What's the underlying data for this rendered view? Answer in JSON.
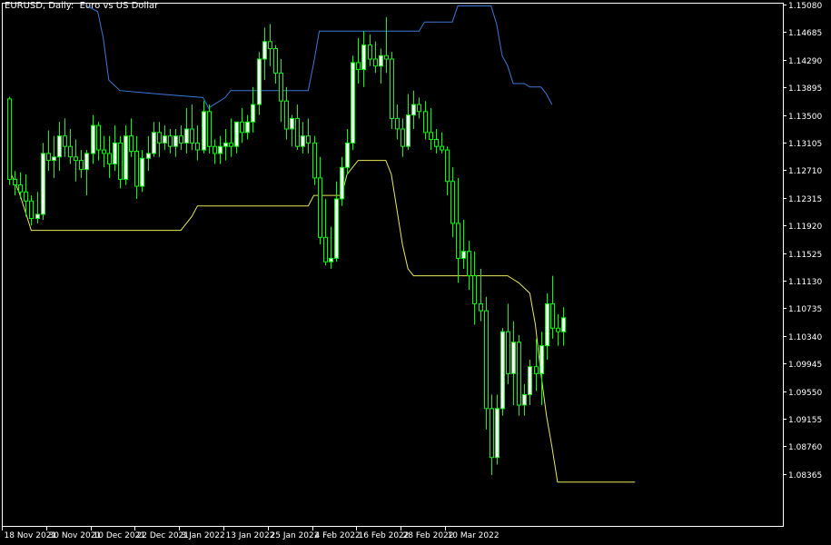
{
  "chart_data": {
    "type": "candlestick",
    "title": "EURUSD, Daily:  Euro vs US Dollar",
    "ylim": [
      1.0796,
      1.1512
    ],
    "y_ticks": [
      "1.15080",
      "1.14685",
      "1.14290",
      "1.13895",
      "1.13500",
      "1.13105",
      "1.12710",
      "1.12315",
      "1.11920",
      "1.11525",
      "1.11130",
      "1.10735",
      "1.10340",
      "1.09945",
      "1.09550",
      "1.09155",
      "1.08760",
      "1.08365"
    ],
    "x_ticks": [
      {
        "index": 0,
        "label": "18 Nov 2021"
      },
      {
        "index": 8,
        "label": "30 Nov 2021"
      },
      {
        "index": 16,
        "label": "10 Dec 2021"
      },
      {
        "index": 24,
        "label": "22 Dec 2021"
      },
      {
        "index": 32,
        "label": "3 Jan 2022"
      },
      {
        "index": 40,
        "label": "13 Jan 2022"
      },
      {
        "index": 48,
        "label": "25 Jan 2022"
      },
      {
        "index": 56,
        "label": "4 Feb 2022"
      },
      {
        "index": 64,
        "label": "16 Feb 2022"
      },
      {
        "index": 72,
        "label": "28 Feb 2022"
      },
      {
        "index": 80,
        "label": "10 Mar 2022"
      }
    ],
    "candles": [
      [
        1.1373,
        1.1376,
        1.125,
        1.1258
      ],
      [
        1.1258,
        1.127,
        1.1235,
        1.125
      ],
      [
        1.125,
        1.1268,
        1.123,
        1.124
      ],
      [
        1.124,
        1.1265,
        1.1205,
        1.1227
      ],
      [
        1.1227,
        1.1235,
        1.1192,
        1.1202
      ],
      [
        1.1202,
        1.124,
        1.1195,
        1.1208
      ],
      [
        1.1208,
        1.131,
        1.12,
        1.1295
      ],
      [
        1.1295,
        1.1328,
        1.127,
        1.1285
      ],
      [
        1.1285,
        1.132,
        1.126,
        1.129
      ],
      [
        1.129,
        1.134,
        1.127,
        1.132
      ],
      [
        1.132,
        1.1345,
        1.129,
        1.1305
      ],
      [
        1.1305,
        1.133,
        1.128,
        1.129
      ],
      [
        1.129,
        1.1315,
        1.1255,
        1.1285
      ],
      [
        1.1285,
        1.13,
        1.126,
        1.1272
      ],
      [
        1.1272,
        1.13,
        1.1235,
        1.1295
      ],
      [
        1.1295,
        1.135,
        1.128,
        1.1335
      ],
      [
        1.1335,
        1.134,
        1.1285,
        1.13
      ],
      [
        1.13,
        1.132,
        1.1275,
        1.1295
      ],
      [
        1.1295,
        1.132,
        1.126,
        1.128
      ],
      [
        1.128,
        1.1335,
        1.127,
        1.131
      ],
      [
        1.131,
        1.132,
        1.1245,
        1.1258
      ],
      [
        1.1258,
        1.1335,
        1.125,
        1.132
      ],
      [
        1.132,
        1.1345,
        1.129,
        1.1298
      ],
      [
        1.1298,
        1.132,
        1.123,
        1.1248
      ],
      [
        1.1248,
        1.13,
        1.124,
        1.1288
      ],
      [
        1.1288,
        1.132,
        1.127,
        1.1295
      ],
      [
        1.1295,
        1.134,
        1.129,
        1.1325
      ],
      [
        1.1325,
        1.134,
        1.129,
        1.131
      ],
      [
        1.131,
        1.1335,
        1.13,
        1.132
      ],
      [
        1.132,
        1.133,
        1.1295,
        1.1305
      ],
      [
        1.1305,
        1.133,
        1.129,
        1.132
      ],
      [
        1.132,
        1.1335,
        1.13,
        1.131
      ],
      [
        1.131,
        1.136,
        1.1295,
        1.133
      ],
      [
        1.133,
        1.1365,
        1.13,
        1.131
      ],
      [
        1.131,
        1.1335,
        1.1285,
        1.13
      ],
      [
        1.13,
        1.137,
        1.1295,
        1.1355
      ],
      [
        1.1355,
        1.1365,
        1.1295,
        1.1305
      ],
      [
        1.1305,
        1.1315,
        1.128,
        1.1295
      ],
      [
        1.1295,
        1.132,
        1.128,
        1.1305
      ],
      [
        1.1305,
        1.133,
        1.1285,
        1.131
      ],
      [
        1.131,
        1.1345,
        1.129,
        1.1305
      ],
      [
        1.1305,
        1.134,
        1.1295,
        1.134
      ],
      [
        1.134,
        1.136,
        1.131,
        1.1325
      ],
      [
        1.1325,
        1.135,
        1.1315,
        1.134
      ],
      [
        1.134,
        1.139,
        1.1325,
        1.1365
      ],
      [
        1.1365,
        1.144,
        1.135,
        1.143
      ],
      [
        1.143,
        1.1475,
        1.14,
        1.1455
      ],
      [
        1.1455,
        1.148,
        1.142,
        1.1445
      ],
      [
        1.1445,
        1.145,
        1.1395,
        1.141
      ],
      [
        1.141,
        1.143,
        1.134,
        1.137
      ],
      [
        1.137,
        1.139,
        1.1315,
        1.133
      ],
      [
        1.133,
        1.135,
        1.1305,
        1.1345
      ],
      [
        1.1345,
        1.1365,
        1.13,
        1.1305
      ],
      [
        1.1305,
        1.134,
        1.1295,
        1.132
      ],
      [
        1.132,
        1.1345,
        1.1295,
        1.131
      ],
      [
        1.131,
        1.132,
        1.125,
        1.126
      ],
      [
        1.126,
        1.129,
        1.1165,
        1.1175
      ],
      [
        1.1175,
        1.123,
        1.1135,
        1.114
      ],
      [
        1.114,
        1.119,
        1.113,
        1.1145
      ],
      [
        1.1145,
        1.1255,
        1.114,
        1.123
      ],
      [
        1.123,
        1.129,
        1.122,
        1.1275
      ],
      [
        1.1275,
        1.133,
        1.1265,
        1.131
      ],
      [
        1.131,
        1.1435,
        1.13,
        1.1425
      ],
      [
        1.1425,
        1.146,
        1.1395,
        1.1415
      ],
      [
        1.1415,
        1.147,
        1.139,
        1.145
      ],
      [
        1.145,
        1.1465,
        1.142,
        1.143
      ],
      [
        1.143,
        1.1455,
        1.141,
        1.142
      ],
      [
        1.142,
        1.1445,
        1.1395,
        1.1435
      ],
      [
        1.1435,
        1.149,
        1.141,
        1.143
      ],
      [
        1.143,
        1.144,
        1.133,
        1.1345
      ],
      [
        1.1345,
        1.1365,
        1.1315,
        1.133
      ],
      [
        1.133,
        1.1345,
        1.129,
        1.1305
      ],
      [
        1.1305,
        1.138,
        1.13,
        1.135
      ],
      [
        1.135,
        1.1385,
        1.133,
        1.1365
      ],
      [
        1.1365,
        1.1375,
        1.1345,
        1.1355
      ],
      [
        1.1355,
        1.137,
        1.1315,
        1.1325
      ],
      [
        1.1325,
        1.136,
        1.13,
        1.1315
      ],
      [
        1.1315,
        1.133,
        1.1295,
        1.1305
      ],
      [
        1.1305,
        1.1325,
        1.1295,
        1.13
      ],
      [
        1.13,
        1.1305,
        1.1235,
        1.1255
      ],
      [
        1.1255,
        1.1275,
        1.1175,
        1.1195
      ],
      [
        1.1195,
        1.126,
        1.111,
        1.1145
      ],
      [
        1.1145,
        1.12,
        1.113,
        1.1155
      ],
      [
        1.1155,
        1.117,
        1.11,
        1.112
      ],
      [
        1.112,
        1.1155,
        1.105,
        1.108
      ],
      [
        1.108,
        1.113,
        1.1055,
        1.107
      ],
      [
        1.107,
        1.109,
        1.09,
        1.093
      ],
      [
        1.093,
        1.095,
        1.0835,
        1.086
      ],
      [
        1.086,
        1.095,
        1.085,
        1.093
      ],
      [
        1.093,
        1.1045,
        1.092,
        1.104
      ],
      [
        1.104,
        1.108,
        1.0965,
        1.098
      ],
      [
        1.098,
        1.1055,
        1.0935,
        1.1025
      ],
      [
        1.1025,
        1.1035,
        1.092,
        1.0935
      ],
      [
        1.0935,
        1.0965,
        1.092,
        1.095
      ],
      [
        1.095,
        1.1,
        1.0935,
        1.099
      ],
      [
        1.099,
        1.103,
        1.0955,
        1.098
      ],
      [
        1.098,
        1.104,
        1.0935,
        1.102
      ],
      [
        1.102,
        1.1095,
        1.1,
        1.108
      ],
      [
        1.108,
        1.112,
        1.103,
        1.1045
      ],
      [
        1.1045,
        1.1065,
        1.102,
        1.104
      ],
      [
        1.104,
        1.1075,
        1.102,
        1.106
      ]
    ],
    "upper_band": [
      [
        14,
        1.1506
      ],
      [
        16,
        1.1498
      ],
      [
        17,
        1.146
      ],
      [
        18,
        1.14
      ],
      [
        20,
        1.1385
      ],
      [
        27,
        1.138
      ],
      [
        35,
        1.1375
      ],
      [
        36,
        1.136
      ],
      [
        37,
        1.1365
      ],
      [
        39,
        1.1375
      ],
      [
        40,
        1.1385
      ],
      [
        54,
        1.1385
      ],
      [
        55,
        1.1425
      ],
      [
        56,
        1.147
      ],
      [
        74,
        1.147
      ],
      [
        75,
        1.1483
      ],
      [
        80,
        1.1483
      ],
      [
        81,
        1.1506
      ],
      [
        87,
        1.1506
      ],
      [
        88,
        1.148
      ],
      [
        89,
        1.1435
      ],
      [
        90,
        1.142
      ],
      [
        91,
        1.1395
      ],
      [
        93,
        1.1395
      ],
      [
        94,
        1.139
      ],
      [
        96,
        1.139
      ],
      [
        97,
        1.138
      ],
      [
        98,
        1.1365
      ]
    ],
    "lower_band": [
      [
        0,
        1.1271
      ],
      [
        1,
        1.1255
      ],
      [
        2,
        1.1235
      ],
      [
        3,
        1.121
      ],
      [
        4,
        1.1185
      ],
      [
        31,
        1.1185
      ],
      [
        32,
        1.1195
      ],
      [
        33,
        1.1205
      ],
      [
        34,
        1.122
      ],
      [
        54,
        1.122
      ],
      [
        55,
        1.1235
      ],
      [
        60,
        1.1235
      ],
      [
        61,
        1.1265
      ],
      [
        62,
        1.1275
      ],
      [
        63,
        1.1285
      ],
      [
        68,
        1.1285
      ],
      [
        69,
        1.1265
      ],
      [
        70,
        1.1215
      ],
      [
        71,
        1.1165
      ],
      [
        72,
        1.113
      ],
      [
        73,
        1.112
      ],
      [
        76,
        1.112
      ],
      [
        90,
        1.112
      ],
      [
        91,
        1.1115
      ],
      [
        92,
        1.111
      ],
      [
        94,
        1.1095
      ],
      [
        95,
        1.105
      ],
      [
        96,
        1.098
      ],
      [
        97,
        1.092
      ],
      [
        98,
        1.0875
      ],
      [
        99,
        1.0825
      ],
      [
        100,
        1.0825
      ],
      [
        110,
        1.0825
      ],
      [
        113,
        1.0825
      ]
    ],
    "colors": {
      "background": "#000000",
      "frame": "#ffffff",
      "bull_body": "#ffffff",
      "bear_body": "#000000",
      "candle_outline": "#00ff00",
      "upper_band": "#3c78d8",
      "lower_band": "#e8e85a",
      "text": "#ffffff"
    }
  }
}
